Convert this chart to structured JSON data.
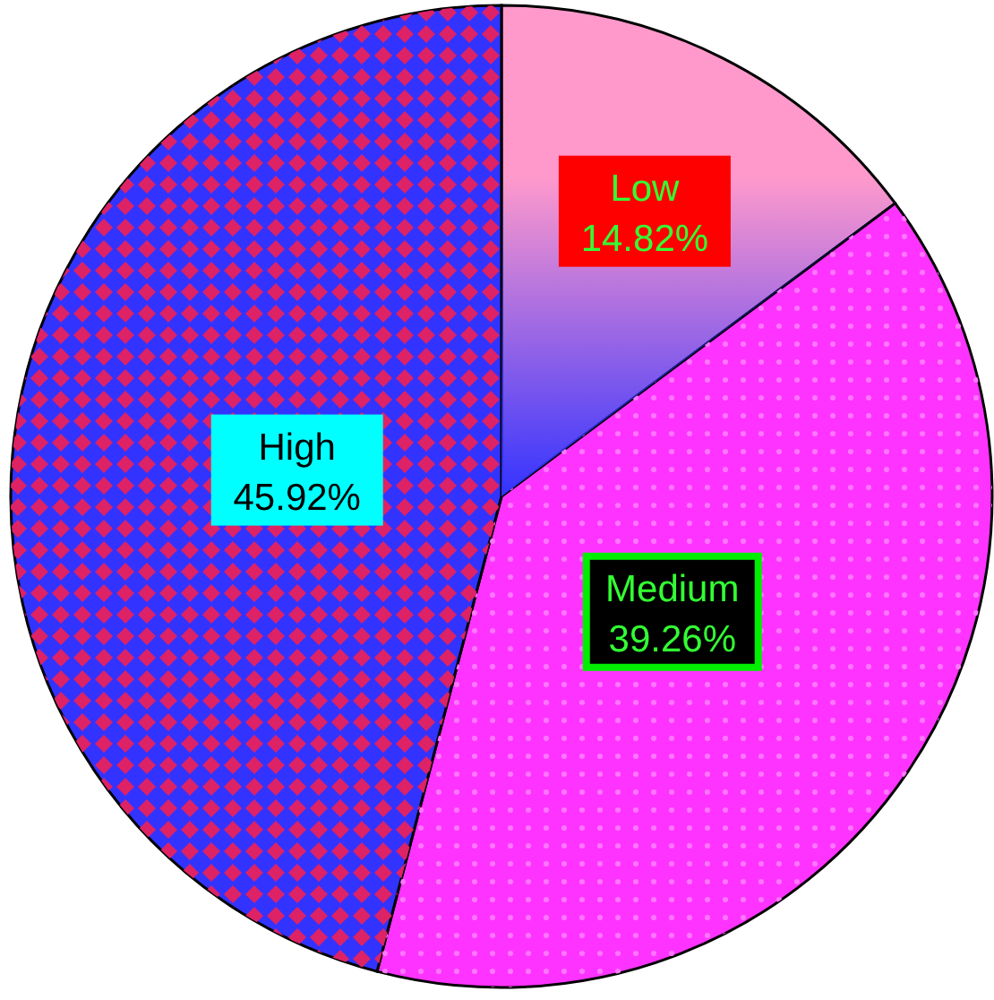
{
  "chart_data": {
    "type": "pie",
    "categories": [
      "Low",
      "Medium",
      "High"
    ],
    "values": [
      14.82,
      39.26,
      45.92
    ],
    "colors": [
      "#ff99cc",
      "#ff33ff",
      "#3333ff"
    ],
    "value_labels": [
      "14.82%",
      "39.26%",
      "45.92%"
    ]
  }
}
